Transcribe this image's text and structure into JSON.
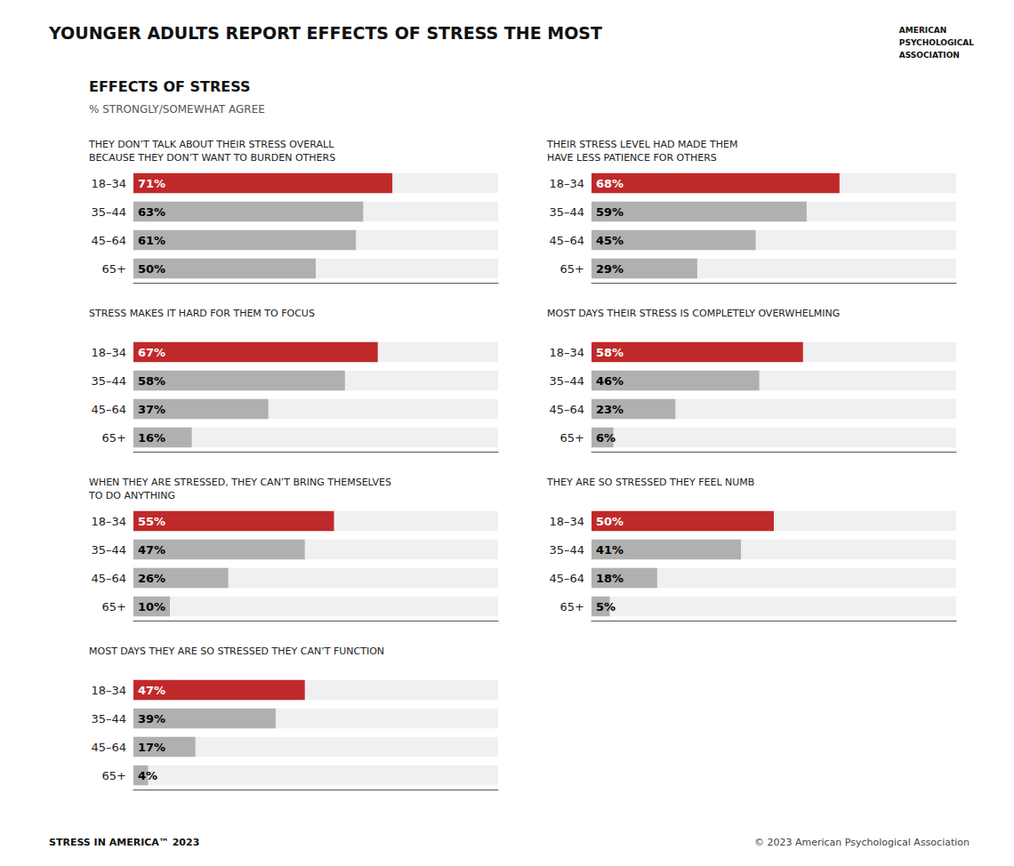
{
  "title": "YOUNGER ADULTS REPORT EFFECTS OF STRESS THE MOST",
  "subtitle": "EFFECTS OF STRESS",
  "annotations": [
    "% STRONGLY/SOMEWHAT AGREE",
    "STRESS IN AMERICA™ 2023",
    "© 2023 American Psychological Association",
    "AMERICAN\nPSYCHOLOGICAL\nASSOCIATION"
  ],
  "chart_data": [
    {
      "type": "bar",
      "orientation": "horizontal",
      "title": "THEY DON’T TALK ABOUT THEIR STRESS OVERALL\nBECAUSE THEY DON’T WANT TO BURDEN OTHERS",
      "categories": [
        "18–34",
        "35–44",
        "45–64",
        "65+"
      ],
      "values": [
        71,
        63,
        61,
        50
      ],
      "value_labels": [
        "71%",
        "63%",
        "61%",
        "50%"
      ],
      "colors": [
        "#c0292b",
        "#b0b0b0",
        "#b0b0b0",
        "#b0b0b0"
      ],
      "xlim": [
        0,
        100
      ],
      "grid": false,
      "tick_labels": "y",
      "data_labels": true
    },
    {
      "type": "bar",
      "orientation": "horizontal",
      "title": "THEIR STRESS LEVEL HAD MADE THEM\nHAVE LESS PATIENCE FOR OTHERS",
      "categories": [
        "18–34",
        "35–44",
        "45–64",
        "65+"
      ],
      "values": [
        68,
        59,
        45,
        29
      ],
      "value_labels": [
        "68%",
        "59%",
        "45%",
        "29%"
      ],
      "colors": [
        "#c0292b",
        "#b0b0b0",
        "#b0b0b0",
        "#b0b0b0"
      ],
      "xlim": [
        0,
        100
      ],
      "grid": false,
      "tick_labels": "y",
      "data_labels": true
    },
    {
      "type": "bar",
      "orientation": "horizontal",
      "title": "STRESS MAKES IT HARD FOR THEM TO FOCUS",
      "categories": [
        "18–34",
        "35–44",
        "45–64",
        "65+"
      ],
      "values": [
        67,
        58,
        37,
        16
      ],
      "value_labels": [
        "67%",
        "58%",
        "37%",
        "16%"
      ],
      "colors": [
        "#c0292b",
        "#b0b0b0",
        "#b0b0b0",
        "#b0b0b0"
      ],
      "xlim": [
        0,
        100
      ],
      "grid": false,
      "tick_labels": "y",
      "data_labels": true
    },
    {
      "type": "bar",
      "orientation": "horizontal",
      "title": "MOST DAYS THEIR STRESS IS COMPLETELY OVERWHELMING",
      "categories": [
        "18–34",
        "35–44",
        "45–64",
        "65+"
      ],
      "values": [
        58,
        46,
        23,
        6
      ],
      "value_labels": [
        "58%",
        "46%",
        "23%",
        "6%"
      ],
      "colors": [
        "#c0292b",
        "#b0b0b0",
        "#b0b0b0",
        "#b0b0b0"
      ],
      "xlim": [
        0,
        100
      ],
      "grid": false,
      "tick_labels": "y",
      "data_labels": true
    },
    {
      "type": "bar",
      "orientation": "horizontal",
      "title": "WHEN THEY ARE STRESSED, THEY CAN’T BRING THEMSELVES\nTO DO ANYTHING",
      "categories": [
        "18–34",
        "35–44",
        "45–64",
        "65+"
      ],
      "values": [
        55,
        47,
        26,
        10
      ],
      "value_labels": [
        "55%",
        "47%",
        "26%",
        "10%"
      ],
      "colors": [
        "#c0292b",
        "#b0b0b0",
        "#b0b0b0",
        "#b0b0b0"
      ],
      "xlim": [
        0,
        100
      ],
      "grid": false,
      "tick_labels": "y",
      "data_labels": true
    },
    {
      "type": "bar",
      "orientation": "horizontal",
      "title": "THEY ARE SO STRESSED THEY FEEL NUMB",
      "categories": [
        "18–34",
        "35–44",
        "45–64",
        "65+"
      ],
      "values": [
        50,
        41,
        18,
        5
      ],
      "value_labels": [
        "50%",
        "41%",
        "18%",
        "5%"
      ],
      "colors": [
        "#c0292b",
        "#b0b0b0",
        "#b0b0b0",
        "#b0b0b0"
      ],
      "xlim": [
        0,
        100
      ],
      "grid": false,
      "tick_labels": "y",
      "data_labels": true
    },
    {
      "type": "bar",
      "orientation": "horizontal",
      "title": "MOST DAYS THEY ARE SO STRESSED THEY CAN’T FUNCTION",
      "categories": [
        "18–34",
        "35–44",
        "45–64",
        "65+"
      ],
      "values": [
        47,
        39,
        17,
        4
      ],
      "value_labels": [
        "47%",
        "39%",
        "17%",
        "4%"
      ],
      "colors": [
        "#c0292b",
        "#b0b0b0",
        "#b0b0b0",
        "#b0b0b0"
      ],
      "xlim": [
        0,
        100
      ],
      "grid": false,
      "tick_labels": "y",
      "data_labels": true
    }
  ]
}
